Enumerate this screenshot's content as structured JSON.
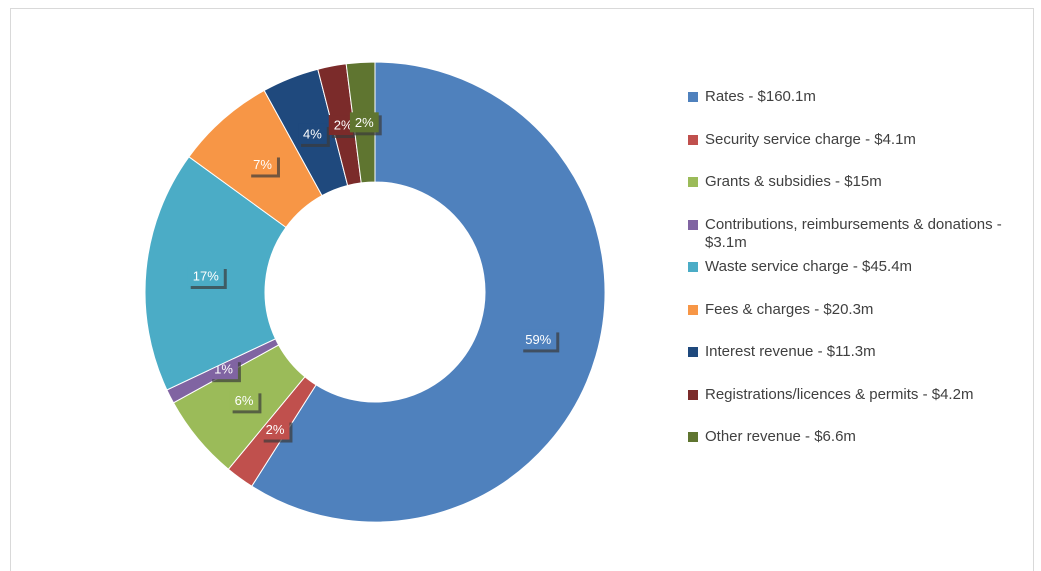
{
  "chart_data": {
    "type": "pie",
    "categories": [
      "Rates - $160.1m",
      "Security service charge - $4.1m",
      "Grants & subsidies - $15m",
      "Contributions, reimbursements & donations - $3.1m",
      "Waste service charge - $45.4m",
      "Fees & charges - $20.3m",
      "Interest revenue - $11.3m",
      "Registrations/licences & permits - $4.2m",
      "Other revenue - $6.6m"
    ],
    "values": [
      59,
      2,
      6,
      1,
      17,
      7,
      4,
      2,
      2
    ],
    "value_labels": [
      "59%",
      "2%",
      "6%",
      "1%",
      "17%",
      "7%",
      "4%",
      "2%",
      "2%"
    ],
    "colors": [
      "#4f81bd",
      "#c0504d",
      "#9bbb59",
      "#8064a2",
      "#4bacc6",
      "#f79646",
      "#1f497d",
      "#7b2b2a",
      "#5f7530"
    ],
    "donut": true,
    "legend": "right"
  }
}
